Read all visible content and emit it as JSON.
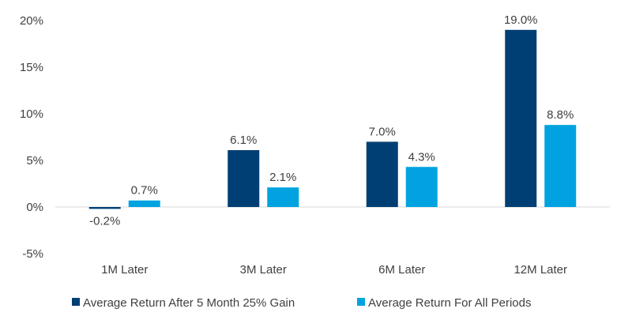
{
  "chart_data": {
    "type": "bar",
    "title": "",
    "xlabel": "",
    "ylabel": "",
    "categories": [
      "1M Later",
      "3M Later",
      "6M Later",
      "12M Later"
    ],
    "series": [
      {
        "name": "Average Return After 5 Month 25% Gain",
        "values": [
          -0.2,
          6.1,
          7.0,
          19.0
        ],
        "labels": [
          "-0.2%",
          "6.1%",
          "7.0%",
          "19.0%"
        ],
        "color": "#003f74"
      },
      {
        "name": "Average Return For All Periods",
        "values": [
          0.7,
          2.1,
          4.3,
          8.8
        ],
        "labels": [
          "0.7%",
          "2.1%",
          "4.3%",
          "8.8%"
        ],
        "color": "#00a3e0"
      }
    ],
    "ylim": [
      -5,
      20
    ],
    "yticks": [
      -5,
      0,
      5,
      10,
      15,
      20
    ],
    "ytick_labels": [
      "-5%",
      "0%",
      "5%",
      "10%",
      "15%",
      "20%"
    ],
    "grid": false,
    "zero_line_color": "#d9d9d9",
    "legend_position": "bottom"
  }
}
